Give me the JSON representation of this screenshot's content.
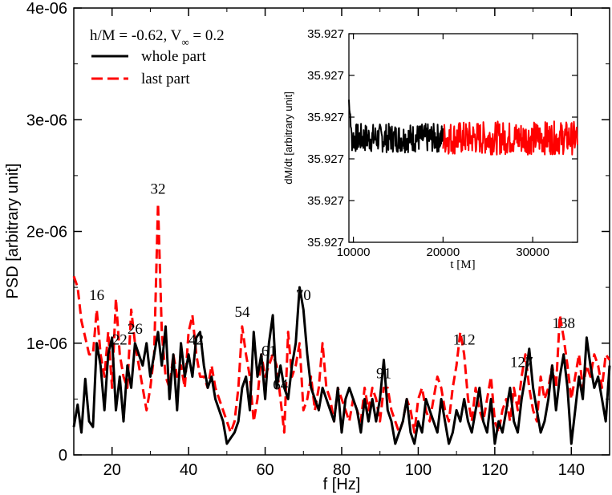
{
  "chart_data": [
    {
      "type": "line",
      "title": "",
      "xlabel": "f [Hz]",
      "ylabel": "PSD [arbitrary unit]",
      "xlim": [
        10,
        150
      ],
      "ylim": [
        0,
        4e-06
      ],
      "x_ticks": [
        20,
        40,
        60,
        80,
        100,
        120,
        140
      ],
      "x_tick_labels": [
        "20",
        "40",
        "60",
        "80",
        "100",
        "120",
        "140"
      ],
      "y_ticks": [
        0,
        1e-06,
        2e-06,
        3e-06,
        4e-06
      ],
      "y_tick_labels": [
        "0",
        "1e-06",
        "2e-06",
        "3e-06",
        "4e-06"
      ],
      "legend": {
        "position": "top-left",
        "header_text": "h/M = -0.62,    V",
        "header_sub": "∞",
        "header_tail": " = 0.2",
        "entries": [
          "whole part",
          "last part"
        ]
      },
      "series": [
        {
          "name": "whole part",
          "color": "#000000",
          "style": "solid",
          "x": [
            10,
            11,
            12,
            13,
            14,
            15,
            16,
            17,
            18,
            19,
            20,
            21,
            22,
            23,
            24,
            25,
            26,
            27,
            28,
            29,
            30,
            31,
            32,
            33,
            34,
            35,
            36,
            37,
            38,
            39,
            40,
            41,
            42,
            43,
            44,
            45,
            46,
            47,
            48,
            49,
            50,
            51,
            52,
            53,
            54,
            55,
            56,
            57,
            58,
            59,
            60,
            61,
            62,
            63,
            64,
            65,
            66,
            67,
            68,
            69,
            70,
            71,
            72,
            73,
            74,
            75,
            76,
            77,
            78,
            79,
            80,
            81,
            82,
            83,
            84,
            85,
            86,
            87,
            88,
            89,
            90,
            91,
            92,
            93,
            94,
            95,
            96,
            97,
            98,
            99,
            100,
            101,
            102,
            103,
            104,
            105,
            106,
            107,
            108,
            109,
            110,
            111,
            112,
            113,
            114,
            115,
            116,
            117,
            118,
            119,
            120,
            121,
            122,
            123,
            124,
            125,
            126,
            127,
            128,
            129,
            130,
            131,
            132,
            133,
            134,
            135,
            136,
            137,
            138,
            139,
            140,
            141,
            142,
            143,
            144,
            145,
            146,
            147,
            148,
            149,
            150
          ],
          "y": [
            2.5e-07,
            4.5e-07,
            2e-07,
            6.8e-07,
            3e-07,
            2.5e-07,
            1e-06,
            8e-07,
            4e-07,
            9e-07,
            1.05e-06,
            4e-07,
            7e-07,
            3e-07,
            8e-07,
            6e-07,
            1e-06,
            9e-07,
            8e-07,
            1e-06,
            7e-07,
            9e-07,
            1.1e-06,
            8e-07,
            1.15e-06,
            5e-07,
            9e-07,
            4e-07,
            1e-06,
            7e-07,
            9e-07,
            7e-07,
            1.05e-06,
            1.1e-06,
            8e-07,
            6e-07,
            7e-07,
            5e-07,
            4e-07,
            3e-07,
            1e-07,
            1.5e-07,
            2e-07,
            3e-07,
            6e-07,
            7e-07,
            4e-07,
            1.1e-06,
            7e-07,
            9e-07,
            5e-07,
            1e-06,
            1.25e-06,
            6e-07,
            8e-07,
            6e-07,
            5e-07,
            8e-07,
            1e-06,
            1.5e-06,
            1.3e-06,
            9e-07,
            6e-07,
            5e-07,
            4e-07,
            6e-07,
            5e-07,
            4e-07,
            3e-07,
            6e-07,
            2e-07,
            5e-07,
            6e-07,
            5e-07,
            4e-07,
            2e-07,
            5e-07,
            3e-07,
            5e-07,
            3e-07,
            5e-07,
            8.5e-07,
            4e-07,
            3e-07,
            1e-07,
            2e-07,
            3e-07,
            5e-07,
            2e-07,
            1e-07,
            3e-07,
            2e-07,
            5e-07,
            4e-07,
            3e-07,
            2e-07,
            5e-07,
            3e-07,
            1e-07,
            2e-07,
            4e-07,
            3e-07,
            5e-07,
            3e-07,
            2e-07,
            4e-07,
            6e-07,
            3e-07,
            2e-07,
            5e-07,
            1e-07,
            3e-07,
            2e-07,
            4e-07,
            6e-07,
            3e-07,
            2e-07,
            5e-07,
            7e-07,
            9.5e-07,
            6e-07,
            4e-07,
            2e-07,
            3e-07,
            5e-07,
            8e-07,
            4e-07,
            7e-07,
            9e-07,
            6e-07,
            1e-07,
            4e-07,
            7e-07,
            5e-07,
            1.05e-06,
            8e-07,
            6e-07,
            7e-07,
            5e-07,
            3e-07,
            8e-07
          ],
          "peak_labels": [
            {
              "text": "70",
              "x": 70
            }
          ]
        },
        {
          "name": "last part",
          "color": "#ff0000",
          "style": "dashed",
          "x": [
            10,
            11,
            12,
            13,
            14,
            15,
            16,
            17,
            18,
            19,
            20,
            21,
            22,
            23,
            24,
            25,
            26,
            27,
            28,
            29,
            30,
            31,
            32,
            33,
            34,
            35,
            36,
            37,
            38,
            39,
            40,
            41,
            42,
            43,
            44,
            45,
            46,
            47,
            48,
            49,
            50,
            51,
            52,
            53,
            54,
            55,
            56,
            57,
            58,
            59,
            60,
            61,
            62,
            63,
            64,
            65,
            66,
            67,
            68,
            69,
            70,
            71,
            72,
            73,
            74,
            75,
            76,
            77,
            78,
            79,
            80,
            81,
            82,
            83,
            84,
            85,
            86,
            87,
            88,
            89,
            90,
            91,
            92,
            93,
            94,
            95,
            96,
            97,
            98,
            99,
            100,
            101,
            102,
            103,
            104,
            105,
            106,
            107,
            108,
            109,
            110,
            111,
            112,
            113,
            114,
            115,
            116,
            117,
            118,
            119,
            120,
            121,
            122,
            123,
            124,
            125,
            126,
            127,
            128,
            129,
            130,
            131,
            132,
            133,
            134,
            135,
            136,
            137,
            138,
            139,
            140,
            141,
            142,
            143,
            144,
            145,
            146,
            147,
            148,
            149,
            150
          ],
          "y": [
            1.6e-06,
            1.5e-06,
            1.2e-06,
            1.05e-06,
            9e-07,
            9e-07,
            1.3e-06,
            9e-07,
            7e-07,
            1.1e-06,
            6e-07,
            1.4e-06,
            9e-07,
            7e-07,
            6e-07,
            1.3e-06,
            1e-06,
            8e-07,
            6e-07,
            4e-07,
            6e-07,
            9e-07,
            2.25e-06,
            1.1e-06,
            7e-07,
            6e-07,
            9e-07,
            7e-07,
            8e-07,
            6e-07,
            1.1e-06,
            1.25e-06,
            9e-07,
            7e-07,
            7e-07,
            6e-07,
            8e-07,
            6e-07,
            5e-07,
            4e-07,
            3e-07,
            2e-07,
            3e-07,
            6e-07,
            1.15e-06,
            9e-07,
            7e-07,
            3e-07,
            5e-07,
            9e-07,
            7e-07,
            8e-07,
            9e-07,
            8e-07,
            5e-07,
            2e-07,
            1.1e-06,
            7e-07,
            8e-07,
            1e-06,
            4e-07,
            5e-07,
            7e-07,
            4e-07,
            6e-07,
            1e-06,
            6e-07,
            5e-07,
            3e-07,
            6e-07,
            5e-07,
            4e-07,
            3e-07,
            5e-07,
            4e-07,
            3e-07,
            6e-07,
            4e-07,
            6e-07,
            5e-07,
            3e-07,
            6e-07,
            6e-07,
            4e-07,
            3e-07,
            2e-07,
            3e-07,
            5e-07,
            4e-07,
            2e-07,
            5e-07,
            6e-07,
            4e-07,
            3e-07,
            5e-07,
            7e-07,
            6e-07,
            4e-07,
            3e-07,
            6e-07,
            8e-07,
            1.1e-06,
            9e-07,
            5e-07,
            3e-07,
            6e-07,
            4e-07,
            3e-07,
            5e-07,
            7e-07,
            3e-07,
            2e-07,
            4e-07,
            5e-07,
            3e-07,
            6e-07,
            4e-07,
            7e-07,
            9e-07,
            6e-07,
            4e-07,
            3e-07,
            7e-07,
            5e-07,
            6e-07,
            8e-07,
            6e-07,
            1.25e-06,
            1.05e-06,
            8e-07,
            5e-07,
            7e-07,
            9e-07,
            6e-07,
            8e-07,
            7e-07,
            9e-07,
            8e-07,
            6e-07,
            9e-07,
            8.5e-07
          ],
          "peak_labels": [
            {
              "text": "16",
              "x": 16
            },
            {
              "text": "22",
              "x": 22
            },
            {
              "text": "26",
              "x": 26
            },
            {
              "text": "32",
              "x": 32
            },
            {
              "text": "42",
              "x": 42
            },
            {
              "text": "54",
              "x": 54
            },
            {
              "text": "61",
              "x": 61
            },
            {
              "text": "64",
              "x": 64
            },
            {
              "text": "91",
              "x": 91
            },
            {
              "text": "112",
              "x": 112
            },
            {
              "text": "127",
              "x": 127
            },
            {
              "text": "138",
              "x": 138
            }
          ]
        }
      ]
    },
    {
      "type": "line",
      "title": "",
      "xlabel": "t [M]",
      "ylabel": "dM/dt [arbitrary unit]",
      "xlim": [
        9500,
        35000
      ],
      "ylim": [
        0,
        5
      ],
      "x_ticks": [
        10000,
        20000,
        30000
      ],
      "x_tick_labels": [
        "10000",
        "20000",
        "30000"
      ],
      "y_ticks": [
        0,
        1,
        2,
        3,
        4,
        5
      ],
      "y_tick_labels": [
        "35.927",
        "35.927",
        "35.927",
        "35.927",
        "35.927",
        "35.927"
      ],
      "series": [
        {
          "name": "whole part",
          "color": "#000000",
          "t_range": [
            9500,
            20000
          ],
          "mean": 2.5,
          "noise": 0.35
        },
        {
          "name": "last part",
          "color": "#ff0000",
          "t_range": [
            20000,
            35000
          ],
          "mean": 2.5,
          "noise": 0.4
        }
      ]
    }
  ]
}
